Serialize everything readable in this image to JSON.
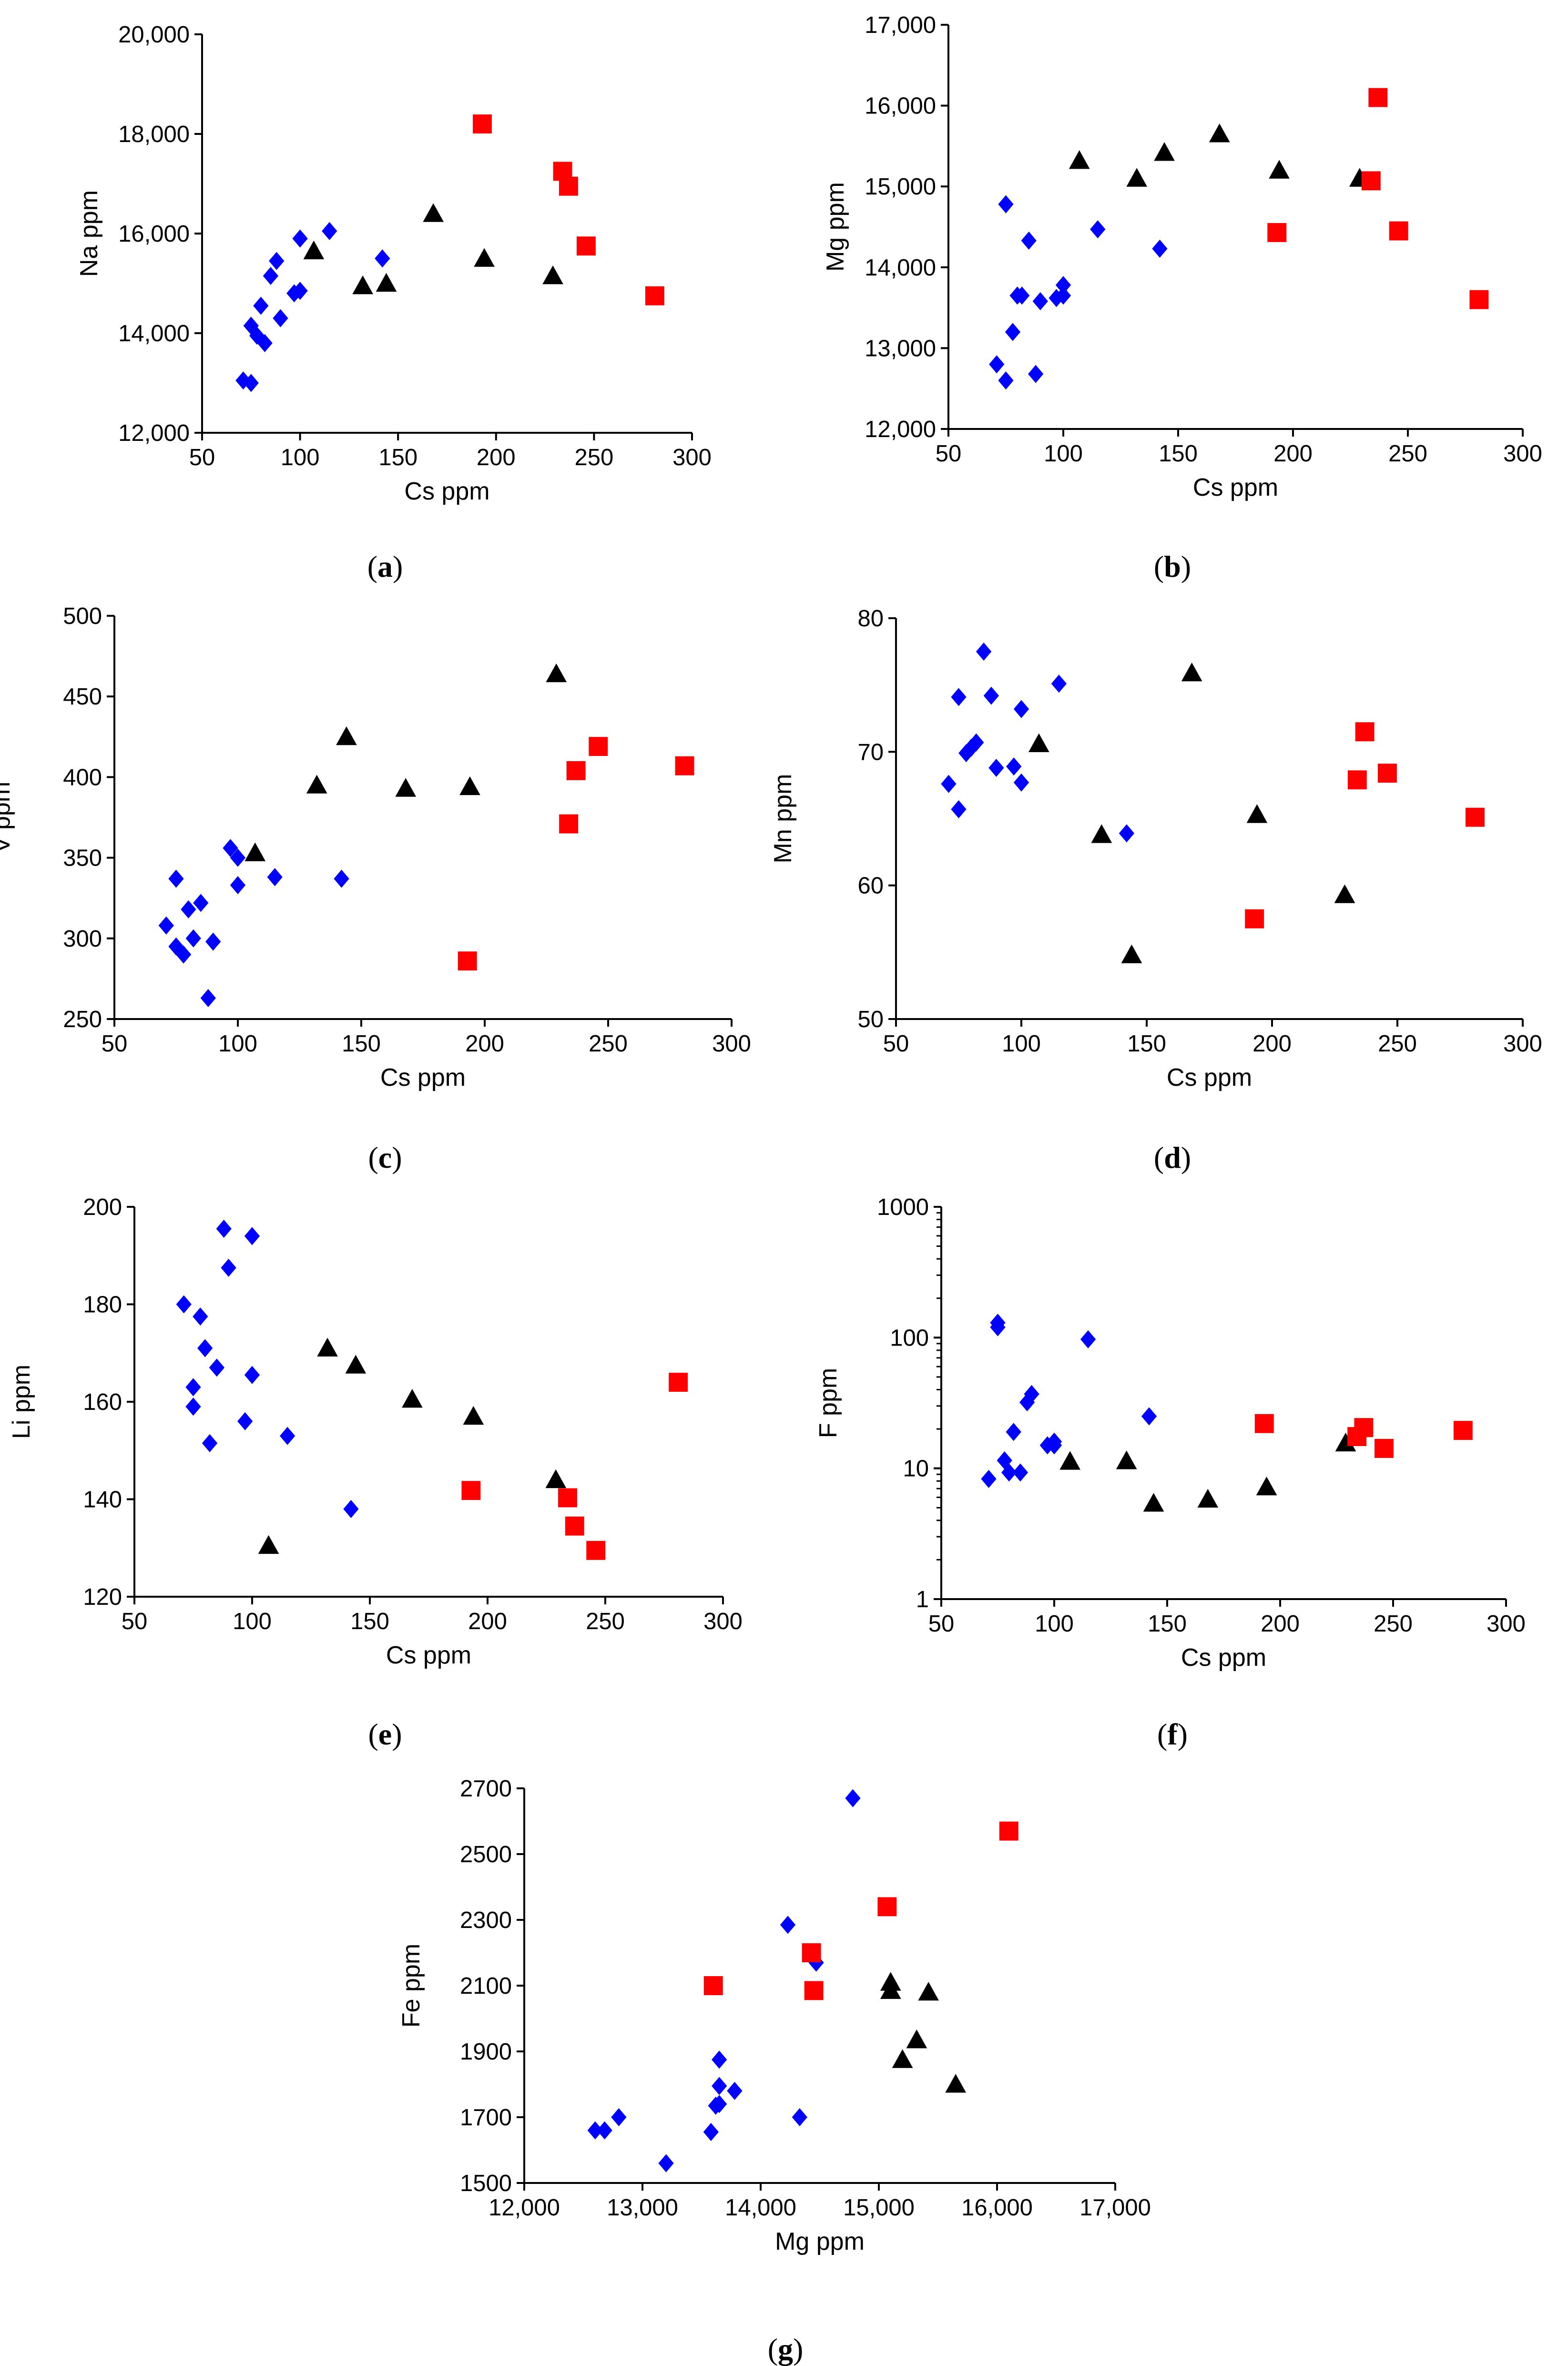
{
  "colors": {
    "blue": "#0000ff",
    "red": "#ff0000",
    "black": "#000000"
  },
  "chart_data": [
    {
      "panel": "(a)",
      "panel_letter": "a",
      "type": "scatter",
      "xlabel": "Cs ppm",
      "ylabel": "Na ppm",
      "xlim": [
        50,
        300
      ],
      "ylim": [
        12000,
        20000
      ],
      "xticks": [
        50,
        100,
        150,
        200,
        250,
        300
      ],
      "yticks": [
        12000,
        14000,
        16000,
        18000,
        20000
      ],
      "xtick_labels": [
        "50",
        "100",
        "150",
        "200",
        "250",
        "300"
      ],
      "ytick_labels": [
        "12,000",
        "14,000",
        "16,000",
        "18,000",
        "20,000"
      ],
      "log_y": false,
      "series": [
        {
          "name": "blue",
          "marker": "diamond",
          "color": "#0000ff",
          "x": [
            71,
            75,
            75,
            78,
            80,
            82,
            85,
            88,
            90,
            97,
            100,
            100,
            115,
            142
          ],
          "y": [
            13050,
            13000,
            14150,
            13950,
            14550,
            13800,
            15150,
            15450,
            14300,
            14800,
            14850,
            15900,
            16050,
            15500
          ]
        },
        {
          "name": "black",
          "marker": "triangle",
          "color": "#000000",
          "x": [
            107,
            132,
            144,
            168,
            194,
            229
          ],
          "y": [
            15650,
            14950,
            15000,
            16400,
            15500,
            15150
          ]
        },
        {
          "name": "red",
          "marker": "square",
          "color": "#ff0000",
          "x": [
            193,
            234,
            237,
            246,
            281
          ],
          "y": [
            18200,
            17250,
            16950,
            15750,
            14750
          ]
        }
      ]
    },
    {
      "panel": "(b)",
      "panel_letter": "b",
      "type": "scatter",
      "xlabel": "Cs ppm",
      "ylabel": "Mg ppm",
      "xlim": [
        50,
        300
      ],
      "ylim": [
        12000,
        17000
      ],
      "xticks": [
        50,
        100,
        150,
        200,
        250,
        300
      ],
      "yticks": [
        12000,
        13000,
        14000,
        15000,
        16000,
        17000
      ],
      "xtick_labels": [
        "50",
        "100",
        "150",
        "200",
        "250",
        "300"
      ],
      "ytick_labels": [
        "12,000",
        "13,000",
        "14,000",
        "15,000",
        "16,000",
        "17,000"
      ],
      "log_y": false,
      "series": [
        {
          "name": "blue",
          "marker": "diamond",
          "color": "#0000ff",
          "x": [
            71,
            75,
            75,
            78,
            80,
            82,
            85,
            88,
            90,
            97,
            100,
            100,
            115,
            142
          ],
          "y": [
            12800,
            12600,
            14780,
            13200,
            13650,
            13650,
            14330,
            12680,
            13580,
            13620,
            13650,
            13780,
            14470,
            14230
          ]
        },
        {
          "name": "black",
          "marker": "triangle",
          "color": "#000000",
          "x": [
            107,
            132,
            144,
            168,
            194,
            229
          ],
          "y": [
            15320,
            15100,
            15420,
            15650,
            15200,
            15100
          ]
        },
        {
          "name": "red",
          "marker": "square",
          "color": "#ff0000",
          "x": [
            193,
            234,
            237,
            246,
            281
          ],
          "y": [
            14430,
            15070,
            16100,
            14450,
            13600
          ]
        }
      ]
    },
    {
      "panel": "(c)",
      "panel_letter": "c",
      "type": "scatter",
      "xlabel": "Cs ppm",
      "ylabel": "V ppm",
      "xlim": [
        50,
        300
      ],
      "ylim": [
        250,
        500
      ],
      "xticks": [
        50,
        100,
        150,
        200,
        250,
        300
      ],
      "yticks": [
        250,
        300,
        350,
        400,
        450,
        500
      ],
      "xtick_labels": [
        "50",
        "100",
        "150",
        "200",
        "250",
        "300"
      ],
      "ytick_labels": [
        "250",
        "300",
        "350",
        "400",
        "450",
        "500"
      ],
      "log_y": false,
      "series": [
        {
          "name": "blue",
          "marker": "diamond",
          "color": "#0000ff",
          "x": [
            71,
            75,
            75,
            78,
            80,
            82,
            85,
            88,
            90,
            97,
            100,
            100,
            115,
            142
          ],
          "y": [
            308,
            337,
            295,
            290,
            318,
            300,
            322,
            263,
            298,
            356,
            350,
            333,
            338,
            337
          ]
        },
        {
          "name": "black",
          "marker": "triangle",
          "color": "#000000",
          "x": [
            107,
            132,
            144,
            168,
            194,
            229
          ],
          "y": [
            353,
            395,
            425,
            393,
            394,
            464
          ]
        },
        {
          "name": "red",
          "marker": "square",
          "color": "#ff0000",
          "x": [
            193,
            234,
            237,
            246,
            281
          ],
          "y": [
            286,
            371,
            404,
            419,
            407
          ]
        }
      ]
    },
    {
      "panel": "(d)",
      "panel_letter": "d",
      "type": "scatter",
      "xlabel": "Cs ppm",
      "ylabel": "Mn ppm",
      "xlim": [
        50,
        300
      ],
      "ylim": [
        50,
        80
      ],
      "xticks": [
        50,
        100,
        150,
        200,
        250,
        300
      ],
      "yticks": [
        50,
        60,
        70,
        80
      ],
      "xtick_labels": [
        "50",
        "100",
        "150",
        "200",
        "250",
        "300"
      ],
      "ytick_labels": [
        "50",
        "60",
        "70",
        "80"
      ],
      "log_y": false,
      "series": [
        {
          "name": "blue",
          "marker": "diamond",
          "color": "#0000ff",
          "x": [
            71,
            75,
            75,
            78,
            80,
            82,
            85,
            88,
            90,
            97,
            100,
            100,
            115,
            142
          ],
          "y": [
            67.6,
            74.1,
            65.7,
            69.9,
            70.3,
            70.7,
            77.5,
            74.2,
            68.8,
            68.9,
            73.2,
            67.7,
            75.1,
            63.9
          ]
        },
        {
          "name": "black",
          "marker": "triangle",
          "color": "#000000",
          "x": [
            107,
            132,
            144,
            168,
            194,
            229
          ],
          "y": [
            70.6,
            63.8,
            54.8,
            75.9,
            65.3,
            59.3
          ]
        },
        {
          "name": "red",
          "marker": "square",
          "color": "#ff0000",
          "x": [
            193,
            234,
            237,
            246,
            281
          ],
          "y": [
            57.5,
            67.9,
            71.5,
            68.4,
            65.1
          ]
        }
      ]
    },
    {
      "panel": "(e)",
      "panel_letter": "e",
      "type": "scatter",
      "xlabel": "Cs ppm",
      "ylabel": "Li ppm",
      "xlim": [
        50,
        300
      ],
      "ylim": [
        120,
        200
      ],
      "xticks": [
        50,
        100,
        150,
        200,
        250,
        300
      ],
      "yticks": [
        120,
        140,
        160,
        180,
        200
      ],
      "xtick_labels": [
        "50",
        "100",
        "150",
        "200",
        "250",
        "300"
      ],
      "ytick_labels": [
        "120",
        "140",
        "160",
        "180",
        "200"
      ],
      "log_y": false,
      "series": [
        {
          "name": "blue",
          "marker": "diamond",
          "color": "#0000ff",
          "x": [
            71,
            75,
            75,
            78,
            80,
            82,
            85,
            88,
            90,
            97,
            100,
            100,
            115,
            142
          ],
          "y": [
            180,
            159,
            163,
            177.5,
            171,
            151.5,
            167,
            195.5,
            187.5,
            156,
            165.5,
            194,
            153,
            138
          ]
        },
        {
          "name": "black",
          "marker": "triangle",
          "color": "#000000",
          "x": [
            107,
            132,
            144,
            168,
            194,
            229
          ],
          "y": [
            130.5,
            171,
            167.5,
            160.5,
            157,
            144
          ]
        },
        {
          "name": "red",
          "marker": "square",
          "color": "#ff0000",
          "x": [
            193,
            234,
            237,
            246,
            281
          ],
          "y": [
            141.8,
            140.3,
            134.5,
            129.5,
            164
          ]
        }
      ]
    },
    {
      "panel": "(f)",
      "panel_letter": "f",
      "type": "scatter",
      "xlabel": "Cs ppm",
      "ylabel": "F ppm",
      "xlim": [
        50,
        300
      ],
      "ylim": [
        1,
        1000
      ],
      "xticks": [
        50,
        100,
        150,
        200,
        250,
        300
      ],
      "yticks": [
        1,
        10,
        100,
        1000
      ],
      "xtick_labels": [
        "50",
        "100",
        "150",
        "200",
        "250",
        "300"
      ],
      "ytick_labels": [
        "1",
        "10",
        "100",
        "1000"
      ],
      "log_y": true,
      "series": [
        {
          "name": "blue",
          "marker": "diamond",
          "color": "#0000ff",
          "x": [
            71,
            75,
            75,
            78,
            80,
            82,
            85,
            88,
            90,
            97,
            100,
            100,
            115,
            142
          ],
          "y": [
            8.3,
            130,
            120,
            11.5,
            9.3,
            19,
            9.3,
            32,
            37,
            15,
            16,
            15,
            97,
            25
          ]
        },
        {
          "name": "black",
          "marker": "triangle",
          "color": "#000000",
          "x": [
            107,
            132,
            144,
            168,
            194,
            229
          ],
          "y": [
            11.3,
            11.4,
            5.4,
            5.8,
            7.2,
            15.6
          ]
        },
        {
          "name": "red",
          "marker": "square",
          "color": "#ff0000",
          "x": [
            193,
            234,
            237,
            246,
            281
          ],
          "y": [
            22,
            17.5,
            20.5,
            14.2,
            19.5
          ]
        }
      ]
    },
    {
      "panel": "(g)",
      "panel_letter": "g",
      "type": "scatter",
      "xlabel": "Mg ppm",
      "ylabel": "Fe ppm",
      "xlim": [
        12000,
        17000
      ],
      "ylim": [
        1500,
        2700
      ],
      "xticks": [
        12000,
        13000,
        14000,
        15000,
        16000,
        17000
      ],
      "yticks": [
        1500,
        1700,
        1900,
        2100,
        2300,
        2500,
        2700
      ],
      "xtick_labels": [
        "12,000",
        "13,000",
        "14,000",
        "15,000",
        "16,000",
        "17,000"
      ],
      "ytick_labels": [
        "1500",
        "1700",
        "1900",
        "2100",
        "2300",
        "2500",
        "2700"
      ],
      "log_y": false,
      "series": [
        {
          "name": "blue",
          "marker": "diamond",
          "color": "#0000ff",
          "x": [
            12800,
            12600,
            14780,
            13200,
            13650,
            13650,
            14330,
            12680,
            13580,
            13620,
            13650,
            13780,
            14470,
            14230
          ],
          "y": [
            1700,
            1660,
            2670,
            1560,
            1795,
            1875,
            1700,
            1660,
            1655,
            1735,
            1740,
            1780,
            2170,
            2285
          ]
        },
        {
          "name": "black",
          "marker": "triangle",
          "color": "#000000",
          "x": [
            15320,
            15100,
            15420,
            15650,
            15200,
            15100
          ],
          "y": [
            1935,
            2085,
            2080,
            1800,
            1875,
            2110
          ]
        },
        {
          "name": "red",
          "marker": "square",
          "color": "#ff0000",
          "x": [
            14430,
            15070,
            16100,
            14450,
            13600
          ],
          "y": [
            2200,
            2340,
            2570,
            2085,
            2100
          ]
        }
      ]
    }
  ]
}
